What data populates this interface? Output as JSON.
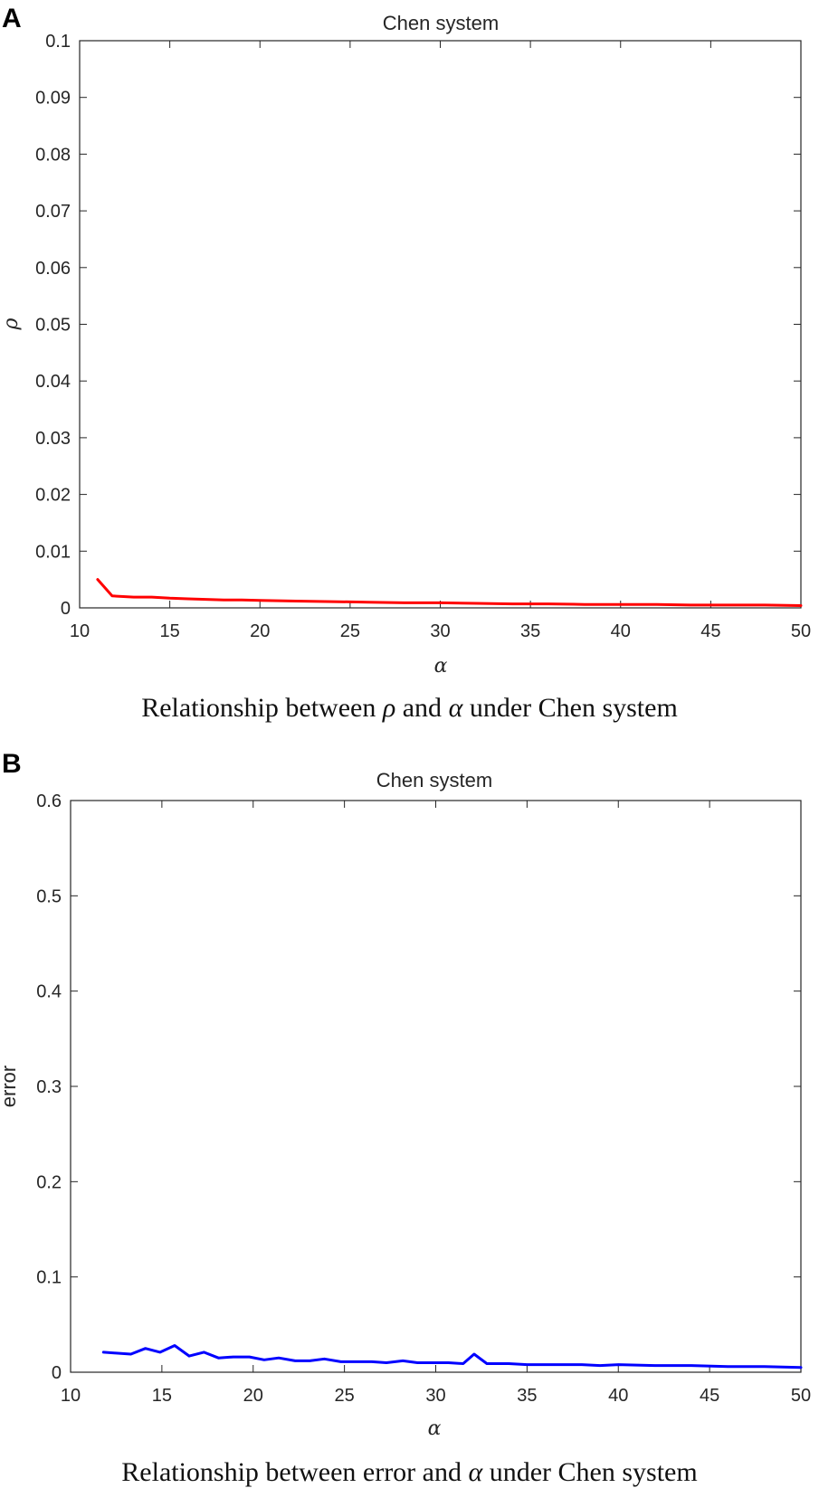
{
  "panels": [
    {
      "letter": "A",
      "caption": {
        "pre": "Relationship between ",
        "sym1": "ρ",
        "mid": " and ",
        "sym2": "α",
        "post": " under Chen system"
      }
    },
    {
      "letter": "B",
      "caption": {
        "pre": "Relationship between error and ",
        "sym2": "α",
        "post": " under Chen system"
      }
    }
  ],
  "chart_data": [
    {
      "type": "line",
      "title": "Chen system",
      "xlabel": "α",
      "ylabel": "ρ",
      "xlim": [
        10,
        50
      ],
      "ylim": [
        0,
        0.1
      ],
      "xticks": [
        "10",
        "15",
        "20",
        "25",
        "30",
        "35",
        "40",
        "45",
        "50"
      ],
      "yticks": [
        "0",
        "0.01",
        "0.02",
        "0.03",
        "0.04",
        "0.05",
        "0.06",
        "0.07",
        "0.08",
        "0.09",
        "0.1"
      ],
      "grid": false,
      "series": [
        {
          "color": "#ff0000",
          "x": [
            11,
            11.8,
            13,
            14,
            15,
            16,
            17,
            18,
            19,
            20,
            22,
            24,
            26,
            28,
            30,
            32,
            34,
            36,
            38,
            40,
            42,
            44,
            46,
            48,
            50
          ],
          "y": [
            0.005,
            0.0021,
            0.0019,
            0.0019,
            0.0017,
            0.0016,
            0.0015,
            0.0014,
            0.0014,
            0.0013,
            0.0012,
            0.0011,
            0.001,
            0.0009,
            0.0009,
            0.0008,
            0.0007,
            0.0007,
            0.0006,
            0.0006,
            0.0006,
            0.0005,
            0.0005,
            0.0005,
            0.0004
          ]
        }
      ]
    },
    {
      "type": "line",
      "title": "Chen system",
      "xlabel": "α",
      "ylabel": "error",
      "xlim": [
        10,
        50
      ],
      "ylim": [
        0,
        0.6
      ],
      "xticks": [
        "10",
        "15",
        "20",
        "25",
        "30",
        "35",
        "40",
        "45",
        "50"
      ],
      "yticks": [
        "0",
        "0.1",
        "0.2",
        "0.3",
        "0.4",
        "0.5",
        "0.6"
      ],
      "grid": false,
      "series": [
        {
          "color": "#0000ff",
          "x": [
            11.8,
            12.5,
            13.3,
            14.1,
            14.9,
            15.7,
            16.5,
            17.3,
            18.1,
            18.9,
            19.8,
            20.6,
            21.4,
            22.3,
            23.1,
            23.9,
            24.8,
            25.6,
            26.5,
            27.3,
            28.2,
            29.0,
            29.8,
            30.7,
            31.5,
            32.1,
            32.8,
            34,
            35,
            36,
            37,
            38,
            39,
            40,
            42,
            44,
            46,
            48,
            50
          ],
          "y": [
            0.021,
            0.02,
            0.019,
            0.025,
            0.021,
            0.028,
            0.017,
            0.021,
            0.015,
            0.016,
            0.016,
            0.013,
            0.015,
            0.012,
            0.012,
            0.014,
            0.011,
            0.011,
            0.011,
            0.01,
            0.012,
            0.01,
            0.01,
            0.01,
            0.009,
            0.019,
            0.009,
            0.009,
            0.008,
            0.008,
            0.008,
            0.008,
            0.007,
            0.008,
            0.007,
            0.007,
            0.006,
            0.006,
            0.005
          ]
        }
      ]
    }
  ]
}
